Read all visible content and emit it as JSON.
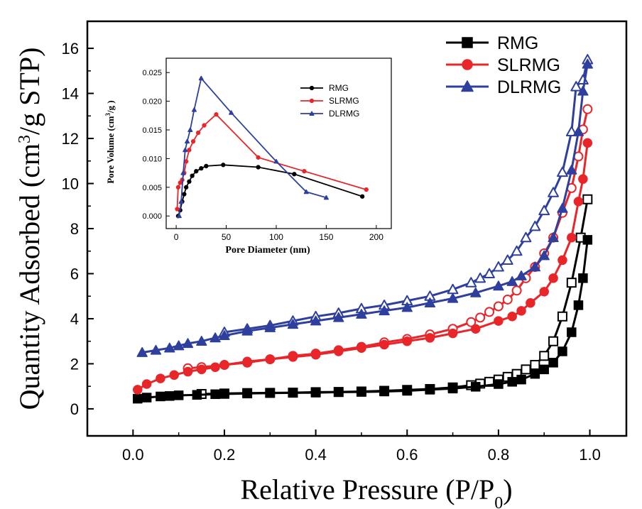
{
  "chart_data": [
    {
      "type": "line",
      "xlabel": "Relative Pressure (P/P",
      "xlabel_sub": "0",
      "xlabel_end": ")",
      "ylabel_main": "Quantity Adsorbed (cm",
      "ylabel_sup": "3",
      "ylabel_end": "/g STP)",
      "xlim": [
        -0.1,
        1.08
      ],
      "ylim": [
        -1.2,
        17.2
      ],
      "xticks": [
        0.0,
        0.2,
        0.4,
        0.6,
        0.8,
        1.0
      ],
      "xtick_labels": [
        "0.0",
        "0.2",
        "0.4",
        "0.6",
        "0.8",
        "1.0"
      ],
      "yticks": [
        0,
        2,
        4,
        6,
        8,
        10,
        12,
        14,
        16
      ],
      "ytick_labels": [
        "0",
        "2",
        "4",
        "6",
        "8",
        "10",
        "12",
        "14",
        "16"
      ],
      "grid": false,
      "legend_position": "top-right",
      "series": [
        {
          "name": "RMG",
          "color": "#000000",
          "marker": "square",
          "adsorption": {
            "x": [
              0.01,
              0.03,
              0.06,
              0.08,
              0.1,
              0.14,
              0.18,
              0.2,
              0.25,
              0.3,
              0.35,
              0.4,
              0.45,
              0.5,
              0.55,
              0.6,
              0.65,
              0.7,
              0.75,
              0.8,
              0.83,
              0.85,
              0.88,
              0.9,
              0.92,
              0.94,
              0.96,
              0.975,
              0.985,
              0.995
            ],
            "y": [
              0.45,
              0.5,
              0.55,
              0.57,
              0.6,
              0.62,
              0.65,
              0.66,
              0.68,
              0.7,
              0.71,
              0.72,
              0.74,
              0.75,
              0.77,
              0.8,
              0.85,
              0.9,
              0.98,
              1.1,
              1.2,
              1.3,
              1.55,
              1.75,
              2.05,
              2.55,
              3.4,
              4.6,
              5.8,
              7.5
            ]
          },
          "desorption": {
            "x": [
              0.995,
              0.98,
              0.96,
              0.94,
              0.92,
              0.9,
              0.88,
              0.86,
              0.84,
              0.82,
              0.8,
              0.78,
              0.76,
              0.74,
              0.7,
              0.65,
              0.6,
              0.55,
              0.5,
              0.45,
              0.4,
              0.35,
              0.3,
              0.25,
              0.2,
              0.15
            ],
            "y": [
              9.3,
              7.6,
              5.6,
              4.1,
              3.0,
              2.35,
              1.95,
              1.75,
              1.55,
              1.42,
              1.3,
              1.2,
              1.12,
              1.05,
              0.95,
              0.88,
              0.84,
              0.8,
              0.77,
              0.75,
              0.74,
              0.72,
              0.71,
              0.7,
              0.68,
              0.66
            ]
          }
        },
        {
          "name": "SLRMG",
          "color": "#e8262a",
          "marker": "circle",
          "adsorption": {
            "x": [
              0.01,
              0.03,
              0.06,
              0.09,
              0.12,
              0.15,
              0.18,
              0.2,
              0.25,
              0.3,
              0.35,
              0.4,
              0.45,
              0.5,
              0.55,
              0.6,
              0.65,
              0.7,
              0.75,
              0.8,
              0.83,
              0.85,
              0.87,
              0.9,
              0.92,
              0.94,
              0.96,
              0.975,
              0.985,
              0.995
            ],
            "y": [
              0.85,
              1.1,
              1.35,
              1.5,
              1.65,
              1.75,
              1.85,
              1.95,
              2.1,
              2.2,
              2.3,
              2.4,
              2.55,
              2.7,
              2.85,
              3.0,
              3.15,
              3.35,
              3.55,
              3.9,
              4.1,
              4.35,
              4.7,
              5.2,
              5.8,
              6.6,
              7.6,
              9.2,
              10.2,
              11.8
            ]
          },
          "desorption": {
            "x": [
              0.995,
              0.985,
              0.975,
              0.96,
              0.94,
              0.92,
              0.9,
              0.88,
              0.86,
              0.84,
              0.82,
              0.8,
              0.78,
              0.76,
              0.74,
              0.7,
              0.65,
              0.6,
              0.55,
              0.5,
              0.45,
              0.4,
              0.35,
              0.3,
              0.25,
              0.2,
              0.15,
              0.12
            ],
            "y": [
              13.3,
              12.4,
              11.2,
              9.8,
              8.7,
              7.6,
              6.9,
              6.3,
              5.8,
              5.25,
              4.85,
              4.55,
              4.3,
              4.05,
              3.85,
              3.55,
              3.3,
              3.1,
              2.95,
              2.75,
              2.6,
              2.45,
              2.35,
              2.2,
              2.05,
              1.95,
              1.85,
              1.8
            ]
          }
        },
        {
          "name": "DLRMG",
          "color": "#2e3f9e",
          "marker": "triangle",
          "adsorption": {
            "x": [
              0.02,
              0.05,
              0.08,
              0.1,
              0.12,
              0.15,
              0.18,
              0.2,
              0.25,
              0.3,
              0.35,
              0.4,
              0.45,
              0.5,
              0.55,
              0.6,
              0.65,
              0.7,
              0.75,
              0.8,
              0.83,
              0.85,
              0.88,
              0.9,
              0.92,
              0.94,
              0.96,
              0.975,
              0.985,
              0.995
            ],
            "y": [
              2.5,
              2.6,
              2.7,
              2.8,
              2.9,
              3.0,
              3.15,
              3.25,
              3.45,
              3.6,
              3.75,
              3.9,
              4.05,
              4.2,
              4.35,
              4.5,
              4.7,
              4.9,
              5.15,
              5.45,
              5.65,
              5.9,
              6.3,
              6.8,
              7.6,
              8.9,
              10.6,
              12.3,
              14.1,
              15.3
            ]
          },
          "desorption": {
            "x": [
              0.995,
              0.985,
              0.97,
              0.96,
              0.94,
              0.92,
              0.9,
              0.88,
              0.86,
              0.84,
              0.82,
              0.8,
              0.78,
              0.76,
              0.74,
              0.7,
              0.65,
              0.6,
              0.55,
              0.5,
              0.45,
              0.4,
              0.35,
              0.3,
              0.25,
              0.2
            ],
            "y": [
              15.5,
              14.6,
              14.3,
              12.3,
              10.5,
              9.6,
              8.8,
              8.1,
              7.6,
              7.0,
              6.6,
              6.3,
              6.0,
              5.8,
              5.6,
              5.3,
              5.0,
              4.8,
              4.6,
              4.45,
              4.25,
              4.1,
              3.9,
              3.7,
              3.55,
              3.4
            ]
          }
        }
      ]
    },
    {
      "type": "line",
      "xlabel": "Pore Diameter (nm)",
      "ylabel_main": "Pore Volume (cm",
      "ylabel_sup": "3",
      "ylabel_end": "/g )",
      "xlim": [
        -10,
        215
      ],
      "ylim": [
        -0.0022,
        0.0275
      ],
      "xticks": [
        0,
        50,
        100,
        150,
        200
      ],
      "xtick_labels": [
        "0",
        "50",
        "100",
        "150",
        "200"
      ],
      "yticks": [
        0,
        0.005,
        0.01,
        0.015,
        0.02,
        0.025
      ],
      "ytick_labels": [
        "0.000",
        "0.005",
        "0.010",
        "0.015",
        "0.020",
        "0.025"
      ],
      "grid": false,
      "legend_position": "top-right",
      "series": [
        {
          "name": "RMG",
          "color": "#000000",
          "x": [
            2,
            4,
            6,
            8,
            10,
            13,
            16,
            20,
            25,
            30,
            47,
            82,
            118,
            186
          ],
          "y": [
            0.0,
            0.001,
            0.0025,
            0.0038,
            0.005,
            0.006,
            0.007,
            0.0078,
            0.0083,
            0.0087,
            0.0089,
            0.0085,
            0.0073,
            0.0034
          ]
        },
        {
          "name": "SLRMG",
          "color": "#e8262a",
          "x": [
            1,
            2,
            4,
            6,
            8,
            10,
            13,
            17,
            22,
            28,
            40,
            82,
            128,
            190
          ],
          "y": [
            0.0012,
            0.005,
            0.0058,
            0.0063,
            0.0075,
            0.0095,
            0.0115,
            0.013,
            0.0145,
            0.0158,
            0.0177,
            0.0102,
            0.0078,
            0.0046
          ]
        },
        {
          "name": "DLRMG",
          "color": "#2e3f9e",
          "x": [
            3,
            5,
            7,
            9,
            11,
            14,
            18,
            25,
            55,
            100,
            130,
            150
          ],
          "y": [
            0.0,
            0.0025,
            0.0075,
            0.0115,
            0.013,
            0.015,
            0.0185,
            0.024,
            0.018,
            0.0095,
            0.0042,
            0.0032
          ]
        }
      ]
    }
  ]
}
